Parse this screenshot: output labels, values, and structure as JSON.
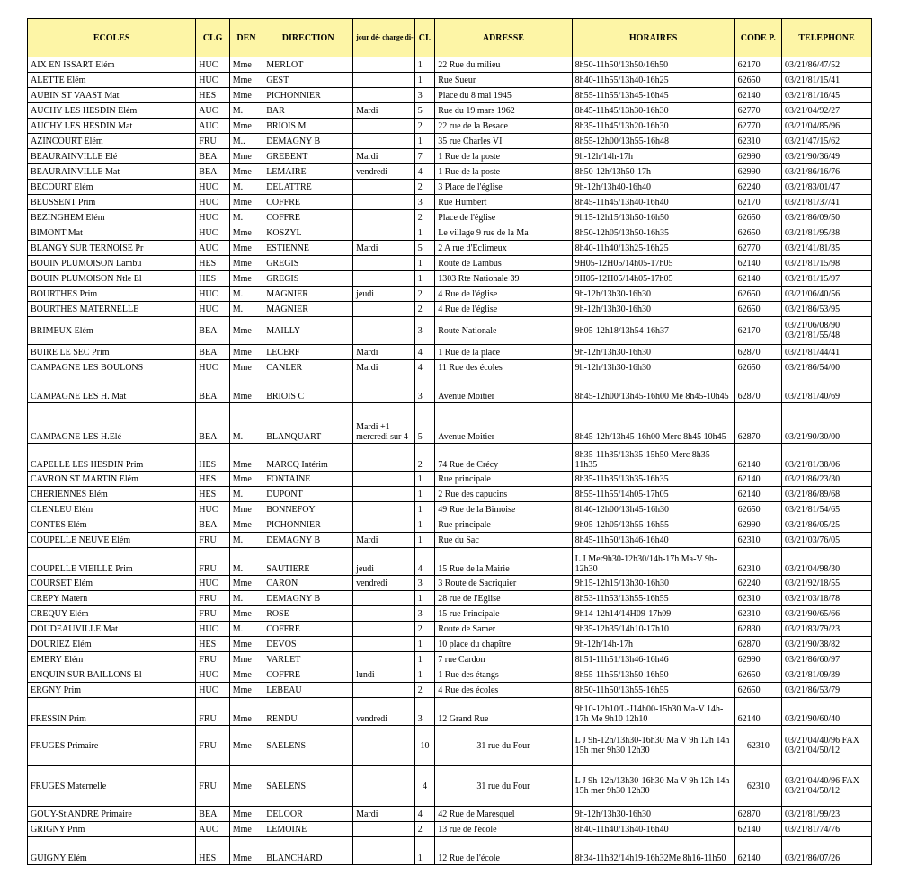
{
  "header": {
    "ecoles": "ECOLES",
    "clg": "CLG",
    "den": "DEN",
    "direction": "DIRECTION",
    "jour": "jour dé-\ncharge di-\nrection",
    "ci": "CI.",
    "adresse": "ADRESSE",
    "horaires": "HORAIRES",
    "code": "CODE P.",
    "tel": "TELEPHONE"
  },
  "rows": [
    {
      "ecole": "AIX EN ISSART Elém",
      "clg": "HUC",
      "den": "Mme",
      "dir": "MERLOT",
      "jour": "",
      "ci": "1",
      "adr": "22 Rue du milieu",
      "hor": "8h50-11h50/13h50/16h50",
      "code": "62170",
      "tel": "03/21/86/47/52"
    },
    {
      "ecole": "ALETTE Elém",
      "clg": "HUC",
      "den": "Mme",
      "dir": "GEST",
      "jour": "",
      "ci": "1",
      "adr": "Rue Sueur",
      "hor": "8h40-11h55/13h40-16h25",
      "code": "62650",
      "tel": "03/21/81/15/41"
    },
    {
      "ecole": "AUBIN ST VAAST Mat",
      "clg": "HES",
      "den": "Mme",
      "dir": "PICHONNIER",
      "jour": "",
      "ci": "3",
      "adr": "Place du 8 mai 1945",
      "hor": "8h55-11h55/13h45-16h45",
      "code": "62140",
      "tel": "03/21/81/16/45"
    },
    {
      "ecole": "AUCHY LES HESDIN Elém",
      "clg": "AUC",
      "den": "M.",
      "dir": "BAR",
      "jour": "Mardi",
      "ci": "5",
      "adr": "Rue du 19 mars 1962",
      "hor": "8h45-11h45/13h30-16h30",
      "code": "62770",
      "tel": "03/21/04/92/27"
    },
    {
      "ecole": "AUCHY LES HESDIN Mat",
      "clg": "AUC",
      "den": "Mme",
      "dir": "BRIOIS M",
      "jour": "",
      "ci": "2",
      "adr": "22 rue de la Besace",
      "hor": "8h35-11h45/13h20-16h30",
      "code": "62770",
      "tel": "03/21/04/85/96"
    },
    {
      "ecole": "AZINCOURT Elém",
      "clg": "FRU",
      "den": "M..",
      "dir": "DEMAGNY B",
      "jour": "",
      "ci": "1",
      "adr": "35 rue Charles VI",
      "hor": "8h55-12h00/13h55-16h48",
      "code": "62310",
      "tel": "03/21/47/15/62"
    },
    {
      "ecole": "BEAURAINVILLE Elé",
      "clg": "BEA",
      "den": "Mme",
      "dir": "GREBENT",
      "jour": "Mardi",
      "ci": "7",
      "adr": "1 Rue de la poste",
      "hor": "9h-12h/14h-17h",
      "code": "62990",
      "tel": "03/21/90/36/49"
    },
    {
      "ecole": "BEAURAINVILLE Mat",
      "clg": "BEA",
      "den": "Mme",
      "dir": "LEMAIRE",
      "jour": "vendredi",
      "ci": "4",
      "adr": "1 Rue de la poste",
      "hor": "8h50-12h/13h50-17h",
      "code": "62990",
      "tel": "03/21/86/16/76"
    },
    {
      "ecole": "BECOURT Elém",
      "clg": "HUC",
      "den": "M.",
      "dir": "DELATTRE",
      "jour": "",
      "ci": "2",
      "adr": "3 Place de l'église",
      "hor": "9h-12h/13h40-16h40",
      "code": "62240",
      "tel": "03/21/83/01/47"
    },
    {
      "ecole": "BEUSSENT Prim",
      "clg": "HUC",
      "den": "Mme",
      "dir": "COFFRE",
      "jour": "",
      "ci": "3",
      "adr": "Rue Humbert",
      "hor": "8h45-11h45/13h40-16h40",
      "code": "62170",
      "tel": "03/21/81/37/41"
    },
    {
      "ecole": "BEZINGHEM Elém",
      "clg": "HUC",
      "den": "M.",
      "dir": "COFFRE",
      "jour": "",
      "ci": "2",
      "adr": "Place de l'église",
      "hor": "9h15-12h15/13h50-16h50",
      "code": "62650",
      "tel": "03/21/86/09/50"
    },
    {
      "ecole": "BIMONT Mat",
      "clg": "HUC",
      "den": "Mme",
      "dir": "KOSZYL",
      "jour": "",
      "ci": "1",
      "adr": "Le village 9 rue de la Ma",
      "hor": "8h50-12h05/13h50-16h35",
      "code": "62650",
      "tel": "03/21/81/95/38"
    },
    {
      "ecole": "BLANGY SUR TERNOISE Pr",
      "clg": "AUC",
      "den": "Mme",
      "dir": "ESTIENNE",
      "jour": "Mardi",
      "ci": "5",
      "adr": "2 A rue d'Eclimeux",
      "hor": "8h40-11h40/13h25-16h25",
      "code": "62770",
      "tel": "03/21/41/81/35"
    },
    {
      "ecole": "BOUIN PLUMOISON Lambu",
      "clg": "HES",
      "den": "Mme",
      "dir": "GREGIS",
      "jour": "",
      "ci": "1",
      "adr": "Route de Lambus",
      "hor": "9H05-12H05/14h05-17h05",
      "code": "62140",
      "tel": "03/21/81/15/98"
    },
    {
      "ecole": "BOUIN PLUMOISON Ntle El",
      "clg": "HES",
      "den": "Mme",
      "dir": "GREGIS",
      "jour": "",
      "ci": "1",
      "adr": "1303 Rte Nationale 39",
      "hor": "9H05-12H05/14h05-17h05",
      "code": "62140",
      "tel": "03/21/81/15/97"
    },
    {
      "ecole": "BOURTHES Prim",
      "clg": "HUC",
      "den": "M.",
      "dir": "MAGNIER",
      "jour": "jeudi",
      "ci": "2",
      "adr": "4 Rue de l'église",
      "hor": "9h-12h/13h30-16h30",
      "code": "62650",
      "tel": "03/21/06/40/56"
    },
    {
      "ecole": "BOURTHES MATERNELLE",
      "clg": "HUC",
      "den": "M.",
      "dir": "MAGNIER",
      "jour": "",
      "ci": "2",
      "adr": "4 Rue de l'église",
      "hor": "9h-12h/13h30-16h30",
      "code": "62650",
      "tel": "03/21/86/53/95"
    },
    {
      "ecole": "BRIMEUX Elém",
      "clg": "BEA",
      "den": "Mme",
      "dir": "MAILLY",
      "jour": "",
      "ci": "3",
      "adr": "Route Nationale",
      "hor": "9h05-12h18/13h54-16h37",
      "code": "62170",
      "tel": "03/21/06/08/90 03/21/81/55/48",
      "tall": true
    },
    {
      "ecole": "BUIRE LE SEC Prim",
      "clg": "BEA",
      "den": "Mme",
      "dir": "LECERF",
      "jour": "Mardi",
      "ci": "4",
      "adr": "1 Rue de la place",
      "hor": "9h-12h/13h30-16h30",
      "code": "62870",
      "tel": "03/21/81/44/41"
    },
    {
      "ecole": "CAMPAGNE LES BOULONS",
      "clg": "HUC",
      "den": "Mme",
      "dir": "CANLER",
      "jour": "Mardi",
      "ci": "4",
      "adr": "11 Rue des écoles",
      "hor": "9h-12h/13h30-16h30",
      "code": "62650",
      "tel": "03/21/86/54/00"
    },
    {
      "ecole": "CAMPAGNE LES H. Mat",
      "clg": "BEA",
      "den": "Mme",
      "dir": "BRIOIS C",
      "jour": "",
      "ci": "3",
      "adr": "Avenue Moitier",
      "hor": "8h45-12h00/13h45-16h00 Me 8h45-10h45",
      "code": "62870",
      "tel": "03/21/81/40/69",
      "tall": true,
      "bottom": true
    },
    {
      "ecole": "CAMPAGNE LES H.Elé",
      "clg": "BEA",
      "den": "M.",
      "dir": "BLANQUART",
      "jour": "Mardi +1 mercredi sur 4",
      "ci": "5",
      "adr": "Avenue Moitier",
      "hor": "8h45-12h/13h45-16h00 Merc 8h45 10h45",
      "code": "62870",
      "tel": "03/21/90/30/00",
      "taller": true,
      "bottom": true
    },
    {
      "ecole": "CAPELLE LES HESDIN Prim",
      "clg": "HES",
      "den": "Mme",
      "dir": "MARCQ Intérim",
      "jour": "",
      "ci": "2",
      "adr": "74 Rue de Crécy",
      "hor": "8h35-11h35/13h35-15h50 Merc 8h35 11h35",
      "code": "62140",
      "tel": "03/21/81/38/06",
      "tall": true,
      "bottom": true
    },
    {
      "ecole": "CAVRON ST MARTIN Elém",
      "clg": "HES",
      "den": "Mme",
      "dir": "FONTAINE",
      "jour": "",
      "ci": "1",
      "adr": "Rue principale",
      "hor": "8h35-11h35/13h35-16h35",
      "code": "62140",
      "tel": "03/21/86/23/30"
    },
    {
      "ecole": "CHERIENNES Elém",
      "clg": "HES",
      "den": "M.",
      "dir": "DUPONT",
      "jour": "",
      "ci": "1",
      "adr": "2 Rue des capucins",
      "hor": "8h55-11h55/14h05-17h05",
      "code": "62140",
      "tel": "03/21/86/89/68"
    },
    {
      "ecole": "CLENLEU Elém",
      "clg": "HUC",
      "den": "Mme",
      "dir": "BONNEFOY",
      "jour": "",
      "ci": "1",
      "adr": "49 Rue de la Bimoise",
      "hor": "8h46-12h00/13h45-16h30",
      "code": "62650",
      "tel": "03/21/81/54/65"
    },
    {
      "ecole": "CONTES Elém",
      "clg": "BEA",
      "den": "Mme",
      "dir": "PICHONNIER",
      "jour": "",
      "ci": "1",
      "adr": "Rue principale",
      "hor": "9h05-12h05/13h55-16h55",
      "code": "62990",
      "tel": "03/21/86/05/25"
    },
    {
      "ecole": "COUPELLE NEUVE Elém",
      "clg": "FRU",
      "den": "M.",
      "dir": "DEMAGNY B",
      "jour": "Mardi",
      "ci": "1",
      "adr": "Rue du Sac",
      "hor": "8h45-11h50/13h46-16h40",
      "code": "62310",
      "tel": "03/21/03/76/05"
    },
    {
      "ecole": "COUPELLE VIEILLE Prim",
      "clg": "FRU",
      "den": "M.",
      "dir": "SAUTIERE",
      "jour": "jeudi",
      "ci": "4",
      "adr": "15 Rue de la Mairie",
      "hor": "L J Mer9h30-12h30/14h-17h Ma-V 9h-12h30",
      "code": "62310",
      "tel": "03/21/04/98/30",
      "tall": true,
      "bottom": true
    },
    {
      "ecole": "COURSET Elém",
      "clg": "HUC",
      "den": "Mme",
      "dir": "CARON",
      "jour": "vendredi",
      "ci": "3",
      "adr": "3 Route de Sacriquier",
      "hor": "9h15-12h15/13h30-16h30",
      "code": "62240",
      "tel": "03/21/92/18/55"
    },
    {
      "ecole": "CREPY Matern",
      "clg": "FRU",
      "den": "M.",
      "dir": "DEMAGNY B",
      "jour": "",
      "ci": "1",
      "adr": "28 rue de l'Eglise",
      "hor": "8h53-11h53/13h55-16h55",
      "code": "62310",
      "tel": "03/21/03/18/78"
    },
    {
      "ecole": "CREQUY Elém",
      "clg": "FRU",
      "den": "Mme",
      "dir": "ROSE",
      "jour": "",
      "ci": "3",
      "adr": "15 rue Principale",
      "hor": "9h14-12h14/14H09-17h09",
      "code": "62310",
      "tel": "03/21/90/65/66"
    },
    {
      "ecole": "DOUDEAUVILLE Mat",
      "clg": "HUC",
      "den": "M.",
      "dir": "COFFRE",
      "jour": "",
      "ci": "2",
      "adr": "Route de Samer",
      "hor": "9h35-12h35/14h10-17h10",
      "code": "62830",
      "tel": "03/21/83/79/23"
    },
    {
      "ecole": "DOURIEZ Elém",
      "clg": "HES",
      "den": "Mme",
      "dir": "DEVOS",
      "jour": "",
      "ci": "1",
      "adr": "10 place du chapître",
      "hor": "9h-12h/14h-17h",
      "code": "62870",
      "tel": "03/21/90/38/82"
    },
    {
      "ecole": "EMBRY Elém",
      "clg": "FRU",
      "den": "Mme",
      "dir": "VARLET",
      "jour": "",
      "ci": "1",
      "adr": "7 rue Cardon",
      "hor": "8h51-11h51/13h46-16h46",
      "code": "62990",
      "tel": "03/21/86/60/97"
    },
    {
      "ecole": "ENQUIN SUR BAILLONS El",
      "clg": "HUC",
      "den": "Mme",
      "dir": "COFFRE",
      "jour": "lundi",
      "ci": "1",
      "adr": "1 Rue des étangs",
      "hor": "8h55-11h55/13h50-16h50",
      "code": "62650",
      "tel": "03/21/81/09/39"
    },
    {
      "ecole": "ERGNY Prim",
      "clg": "HUC",
      "den": "Mme",
      "dir": "LEBEAU",
      "jour": "",
      "ci": "2",
      "adr": "4 Rue des écoles",
      "hor": "8h50-11h50/13h55-16h55",
      "code": "62650",
      "tel": "03/21/86/53/79"
    },
    {
      "ecole": "FRESSIN Prim",
      "clg": "FRU",
      "den": "Mme",
      "dir": "RENDU",
      "jour": "vendredi",
      "ci": "3",
      "adr": "12 Grand Rue",
      "hor": "9h10-12h10/L-J14h00-15h30 Ma-V 14h-17h Me 9h10 12h10",
      "code": "62140",
      "tel": "03/21/90/60/40",
      "tall": true,
      "bottom": true
    },
    {
      "ecole": "FRUGES Primaire",
      "clg": "FRU",
      "den": "Mme",
      "dir": "SAELENS",
      "jour": "",
      "ci": "10",
      "adr": "31 rue du Four",
      "hor": "L J 9h-12h/13h30-16h30 Ma V 9h 12h 14h 15h mer 9h30 12h30",
      "code": "62310",
      "tel": "03/21/04/40/96 FAX 03/21/04/50/12",
      "taller": true,
      "ci_center": true,
      "adr_center": true
    },
    {
      "ecole": "FRUGES Maternelle",
      "clg": "FRU",
      "den": "Mme",
      "dir": "SAELENS",
      "jour": "",
      "ci": "4",
      "adr": "31 rue du Four",
      "hor": "L J 9h-12h/13h30-16h30 Ma V 9h 12h 14h 15h mer 9h30 12h30",
      "code": "62310",
      "tel": "03/21/04/40/96 FAX 03/21/04/50/12",
      "taller": true,
      "ci_center": true,
      "adr_center": true
    },
    {
      "ecole": "GOUY-St ANDRE Primaire",
      "clg": "BEA",
      "den": "Mme",
      "dir": "DELOOR",
      "jour": "Mardi",
      "ci": "4",
      "adr": "42 Rue de Maresquel",
      "hor": "9h-12h/13h30-16h30",
      "code": "62870",
      "tel": "03/21/81/99/23"
    },
    {
      "ecole": "GRIGNY Prim",
      "clg": "AUC",
      "den": "Mme",
      "dir": "LEMOINE",
      "jour": "",
      "ci": "2",
      "adr": "13 rue de l'école",
      "hor": "8h40-11h40/13h40-16h40",
      "code": "62140",
      "tel": "03/21/81/74/76"
    },
    {
      "ecole": "GUIGNY Elém",
      "clg": "HES",
      "den": "Mme",
      "dir": "BLANCHARD",
      "jour": "",
      "ci": "1",
      "adr": "12 Rue de l'école",
      "hor": "8h34-11h32/14h19-16h32Me 8h16-11h50",
      "code": "62140",
      "tel": "03/21/86/07/26",
      "tall": true,
      "bottom": true
    }
  ]
}
